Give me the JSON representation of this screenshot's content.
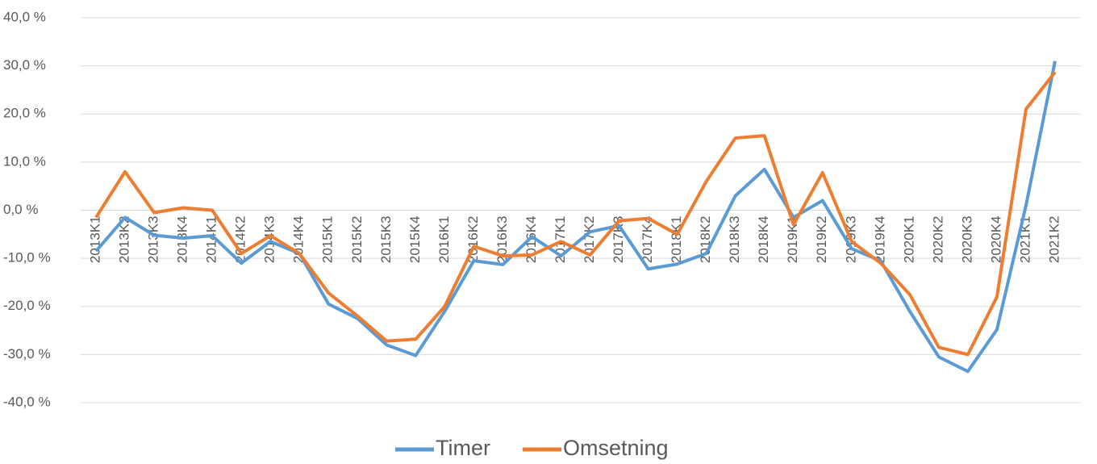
{
  "chart_data": {
    "type": "line",
    "categories": [
      "2013K1",
      "2013K2",
      "2013K3",
      "2013K4",
      "2014K1",
      "2014K2",
      "2014K3",
      "2014K4",
      "2015K1",
      "2015K2",
      "2015K3",
      "2015K4",
      "2016K1",
      "2016K2",
      "2016K3",
      "2016K4",
      "2017K1",
      "2017K2",
      "2017K3",
      "2017K4",
      "2018K1",
      "2018K2",
      "2018K3",
      "2018K4",
      "2019K1",
      "2019K2",
      "2019K3",
      "2019K4",
      "2020K1",
      "2020K2",
      "2020K3",
      "2020K4",
      "2021K1",
      "2021K2"
    ],
    "series": [
      {
        "name": "Timer",
        "color": "#5b9bd5",
        "values": [
          -8.5,
          -1.5,
          -5.2,
          -5.8,
          -5.3,
          -11,
          -6.5,
          -9,
          -19.5,
          -22.5,
          -28,
          -30.2,
          -21,
          -10.5,
          -11.3,
          -5.5,
          -9.5,
          -4.5,
          -3.2,
          -12.2,
          -11.2,
          -9,
          3,
          8.5,
          -1.5,
          2,
          -8,
          -10.5,
          -21,
          -30.5,
          -33.5,
          -24.8,
          1,
          31
        ]
      },
      {
        "name": "Omsetning",
        "color": "#ed7d31",
        "values": [
          -1.5,
          8,
          -0.5,
          0.5,
          0,
          -9,
          -5.3,
          -9,
          -17.2,
          -22,
          -27.2,
          -26.8,
          -20,
          -7.5,
          -9.5,
          -9.3,
          -6.5,
          -9.3,
          -2.2,
          -1.7,
          -5,
          6,
          15,
          15.5,
          -3,
          7.8,
          -6.5,
          -11,
          -17.5,
          -28.5,
          -30,
          -18,
          21,
          28.7
        ]
      }
    ],
    "ylim": [
      -40,
      40
    ],
    "yticks": [
      {
        "value": -40,
        "label": "-40,0 %"
      },
      {
        "value": -30,
        "label": "-30,0 %"
      },
      {
        "value": -20,
        "label": "-20,0 %"
      },
      {
        "value": -10,
        "label": "-10,0 %"
      },
      {
        "value": 0,
        "label": "0,0 %"
      },
      {
        "value": 10,
        "label": "10,0 %"
      },
      {
        "value": 20,
        "label": "20,0 %"
      },
      {
        "value": 30,
        "label": "30,0 %"
      },
      {
        "value": 40,
        "label": "40,0 %"
      }
    ],
    "grid": true,
    "legend": "bottom"
  }
}
